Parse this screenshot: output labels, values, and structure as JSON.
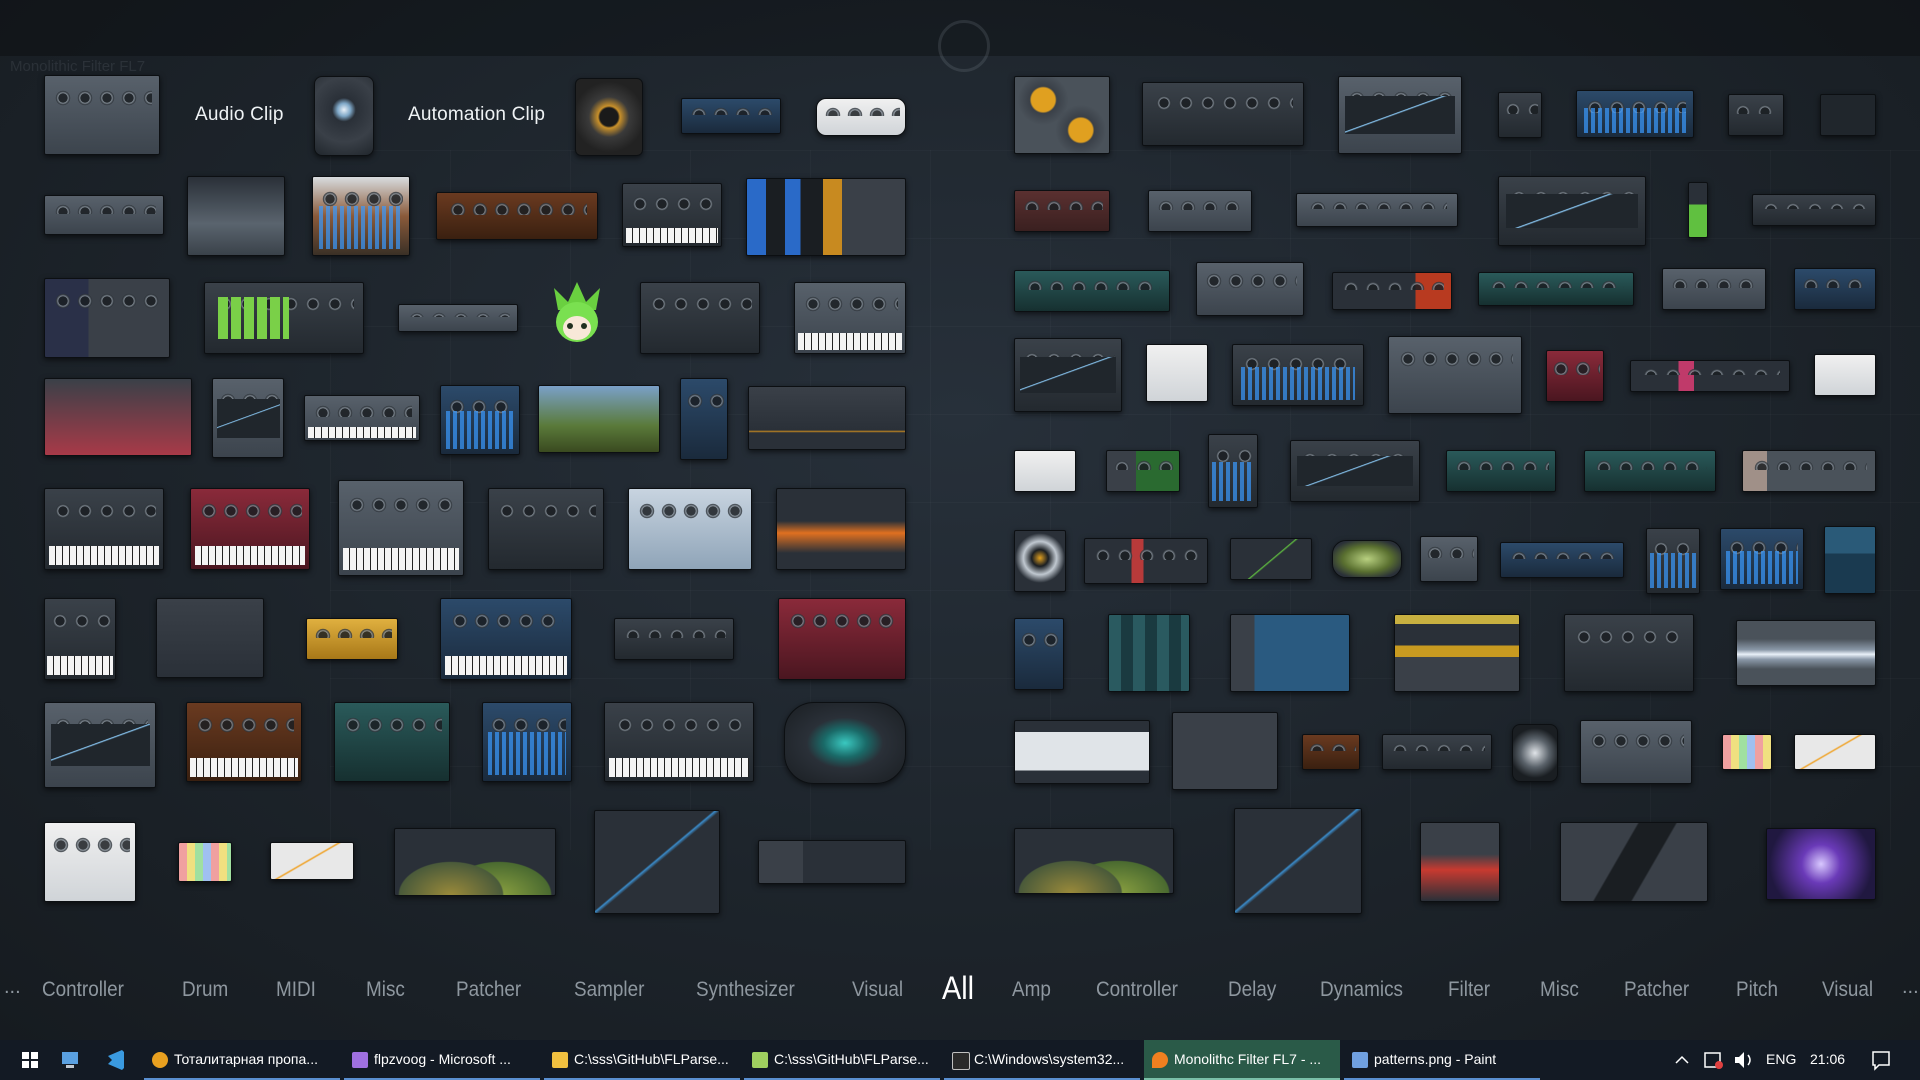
{
  "background_window": {
    "title": "Monolithic Filter FL7"
  },
  "clip_labels": {
    "audio_clip": "Audio Clip",
    "automation_clip": "Automation Clip"
  },
  "categories": {
    "overflow_left": "...",
    "left": [
      "Controller",
      "Drum",
      "MIDI",
      "Misc",
      "Patcher",
      "Sampler",
      "Synthesizer",
      "Visual"
    ],
    "active": "All",
    "right": [
      "Amp",
      "Controller",
      "Delay",
      "Dynamics",
      "Filter",
      "Misc",
      "Patcher",
      "Pitch",
      "Visual"
    ],
    "overflow_right": "..."
  },
  "taskbar": {
    "items": [
      {
        "label": "Тоталитарная пропа...",
        "icon": "chrome-icon",
        "color": "#e8a020"
      },
      {
        "label": "flpzvoog - Microsoft ...",
        "icon": "visual-studio-icon",
        "color": "#a070e0"
      },
      {
        "label": "C:\\sss\\GitHub\\FLParse...",
        "icon": "folder-icon",
        "color": "#f0c040"
      },
      {
        "label": "C:\\sss\\GitHub\\FLParse...",
        "icon": "notepad-icon",
        "color": "#a0d060"
      },
      {
        "label": "C:\\Windows\\system32...",
        "icon": "cmd-icon",
        "color": "#c0c0c0"
      },
      {
        "label": "Monolithc Filter FL7 - ...",
        "icon": "fl-studio-icon",
        "color": "#f08020"
      },
      {
        "label": "patterns.png - Paint",
        "icon": "paint-icon",
        "color": "#70a0e0"
      }
    ],
    "language": "ENG",
    "time": "21:06"
  },
  "colors": {
    "active_taskbar_item": "#2a5a48",
    "category_text": "#8e979f",
    "category_active": "#ffffff"
  }
}
